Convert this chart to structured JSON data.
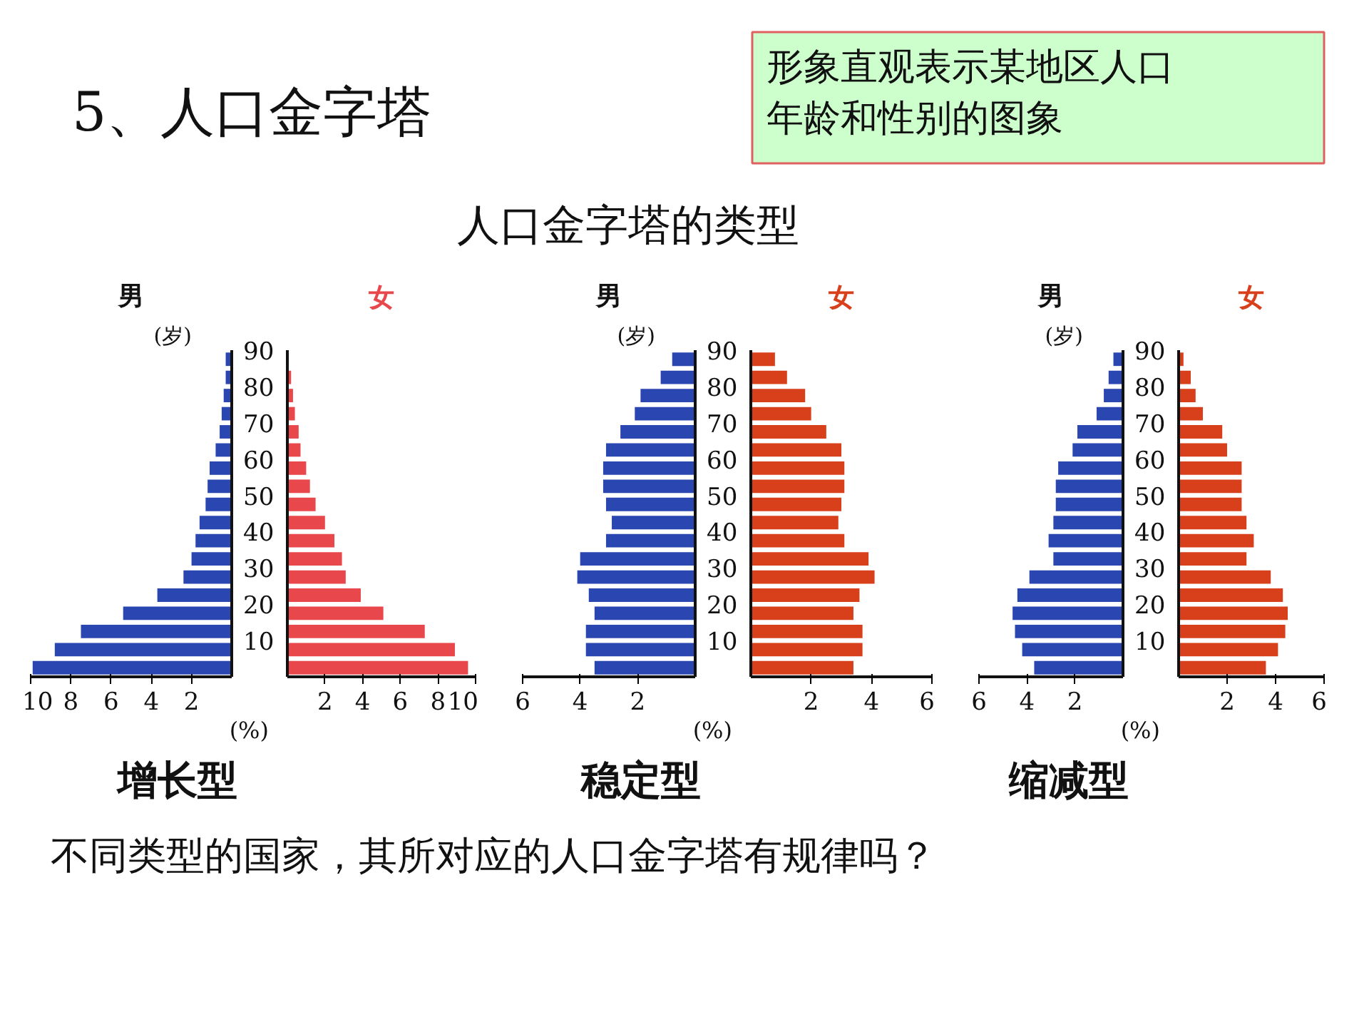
{
  "chart_data": [
    {
      "type": "other",
      "title": "5、人口金字塔",
      "annotations": [
        "形象直观表示某地区人口年龄和性别的图象",
        "人口金字塔的类型"
      ]
    },
    {
      "type": "bar",
      "orientation": "horizontal",
      "title": "男",
      "ylabel": "(岁)",
      "xlabel": "(%)",
      "annotations": [
        "增长型"
      ],
      "x": [
        2.5,
        7.5,
        12.5,
        17.5,
        22.5,
        27.5,
        32.5,
        37.5,
        42.5,
        47.5,
        52.5,
        57.5,
        62.5,
        67.5,
        72.5,
        77.5,
        82.5,
        87.5
      ],
      "series": [
        {
          "color": "#2a46b0",
          "values": [
            9.9,
            8.8,
            7.5,
            5.4,
            3.7,
            2.4,
            2.0,
            1.8,
            1.6,
            1.3,
            1.2,
            1.1,
            0.8,
            0.6,
            0.5,
            0.4,
            0.3,
            0.3
          ]
        }
      ],
      "xlim": [
        10,
        0
      ],
      "xticks": [
        10,
        8,
        6,
        4,
        2
      ],
      "ylim": [
        0,
        90
      ],
      "yticks": [
        10,
        20,
        30,
        40,
        50,
        60,
        70,
        80,
        90
      ],
      "grid": false
    },
    {
      "type": "bar",
      "orientation": "horizontal",
      "x": [
        2.5,
        7.5,
        12.5,
        17.5,
        22.5,
        27.5,
        32.5,
        37.5,
        42.5,
        47.5,
        52.5,
        57.5,
        62.5,
        67.5,
        72.5,
        77.5,
        82.5
      ],
      "series": [
        {
          "name": "女",
          "color": "#e8474c",
          "values": [
            9.6,
            8.9,
            7.3,
            5.1,
            3.9,
            3.1,
            2.9,
            2.5,
            2.0,
            1.5,
            1.2,
            1.0,
            0.7,
            0.6,
            0.4,
            0.3,
            0.2
          ]
        }
      ],
      "xlim": [
        0,
        10
      ],
      "xticks": [
        2,
        4,
        6,
        8,
        10
      ],
      "ylim": [
        0,
        90
      ],
      "yticks": [
        10,
        20,
        30,
        40,
        50,
        60,
        70,
        80,
        90
      ],
      "grid": false,
      "tick_labels": "x"
    },
    {
      "type": "bar",
      "orientation": "horizontal",
      "title": "男",
      "ylabel": "(岁)",
      "xlabel": "(%)",
      "annotations": [
        "稳定型"
      ],
      "x": [
        2.5,
        7.5,
        12.5,
        17.5,
        22.5,
        27.5,
        32.5,
        37.5,
        42.5,
        47.5,
        52.5,
        57.5,
        62.5,
        67.5,
        72.5,
        77.5,
        82.5,
        87.5
      ],
      "series": [
        {
          "color": "#2a46b0",
          "values": [
            3.5,
            3.8,
            3.8,
            3.5,
            3.7,
            4.1,
            4.0,
            3.1,
            2.9,
            3.1,
            3.2,
            3.2,
            3.1,
            2.6,
            2.1,
            1.9,
            1.2,
            0.8
          ]
        }
      ],
      "xlim": [
        6,
        0
      ],
      "xticks": [
        6,
        4,
        2
      ],
      "ylim": [
        0,
        90
      ],
      "yticks": [
        10,
        20,
        30,
        40,
        50,
        60,
        70,
        80,
        90
      ],
      "grid": false
    },
    {
      "type": "bar",
      "orientation": "horizontal",
      "x": [
        2.5,
        7.5,
        12.5,
        17.5,
        22.5,
        27.5,
        32.5,
        37.5,
        42.5,
        47.5,
        52.5,
        57.5,
        62.5,
        67.5,
        72.5,
        77.5,
        82.5,
        87.5
      ],
      "series": [
        {
          "name": "女",
          "color": "#d8401c",
          "values": [
            3.4,
            3.7,
            3.7,
            3.4,
            3.6,
            4.1,
            3.9,
            3.1,
            2.9,
            3.0,
            3.1,
            3.1,
            3.0,
            2.5,
            2.0,
            1.8,
            1.2,
            0.8
          ]
        }
      ],
      "xlim": [
        0,
        6
      ],
      "xticks": [
        2,
        4,
        6
      ],
      "ylim": [
        0,
        90
      ],
      "yticks": [
        10,
        20,
        30,
        40,
        50,
        60,
        70,
        80,
        90
      ],
      "grid": false,
      "tick_labels": "x"
    },
    {
      "type": "bar",
      "orientation": "horizontal",
      "title": "男",
      "ylabel": "(岁)",
      "xlabel": "(%)",
      "annotations": [
        "缩减型"
      ],
      "x": [
        2.5,
        7.5,
        12.5,
        17.5,
        22.5,
        27.5,
        32.5,
        37.5,
        42.5,
        47.5,
        52.5,
        57.5,
        62.5,
        67.5,
        72.5,
        77.5,
        82.5,
        87.5
      ],
      "series": [
        {
          "color": "#2a46b0",
          "values": [
            3.7,
            4.2,
            4.5,
            4.6,
            4.4,
            3.9,
            2.9,
            3.1,
            2.9,
            2.8,
            2.8,
            2.7,
            2.1,
            1.9,
            1.1,
            0.8,
            0.6,
            0.4
          ]
        }
      ],
      "xlim": [
        6,
        0
      ],
      "xticks": [
        6,
        4,
        2
      ],
      "ylim": [
        0,
        90
      ],
      "yticks": [
        10,
        20,
        30,
        40,
        50,
        60,
        70,
        80,
        90
      ],
      "grid": false
    },
    {
      "type": "bar",
      "orientation": "horizontal",
      "x": [
        2.5,
        7.5,
        12.5,
        17.5,
        22.5,
        27.5,
        32.5,
        37.5,
        42.5,
        47.5,
        52.5,
        57.5,
        62.5,
        67.5,
        72.5,
        77.5,
        82.5,
        87.5
      ],
      "series": [
        {
          "name": "女",
          "color": "#d8401c",
          "values": [
            3.6,
            4.1,
            4.4,
            4.5,
            4.3,
            3.8,
            2.8,
            3.1,
            2.8,
            2.6,
            2.6,
            2.6,
            2.0,
            1.8,
            1.0,
            0.7,
            0.5,
            0.2
          ]
        }
      ],
      "xlim": [
        0,
        6
      ],
      "xticks": [
        2,
        4,
        6
      ],
      "ylim": [
        0,
        90
      ],
      "yticks": [
        10,
        20,
        30,
        40,
        50,
        60,
        70,
        80,
        90
      ],
      "grid": false,
      "tick_labels": "x"
    },
    {
      "type": "other",
      "annotations": [
        "不同类型的国家，其所对应的人口金字塔有规律吗？"
      ]
    }
  ]
}
